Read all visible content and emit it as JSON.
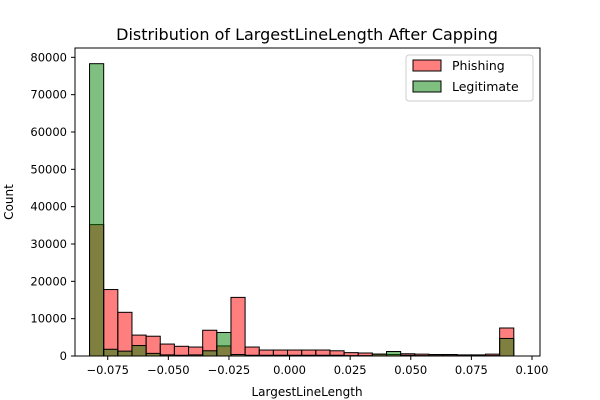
{
  "chart_data": {
    "type": "histogram",
    "title": "Distribution of LargestLineLength After Capping",
    "xlabel": "LargestLineLength",
    "ylabel": "Count",
    "xlim": [
      -0.0885,
      0.1033
    ],
    "ylim": [
      0,
      82500
    ],
    "x_ticks": [
      -0.075,
      -0.05,
      -0.025,
      0.0,
      0.025,
      0.05,
      0.075,
      0.1
    ],
    "x_tick_labels": [
      "−0.075",
      "−0.050",
      "−0.025",
      "0.000",
      "0.025",
      "0.050",
      "0.075",
      "0.100"
    ],
    "y_ticks": [
      0,
      10000,
      20000,
      30000,
      40000,
      50000,
      60000,
      70000,
      80000
    ],
    "y_tick_labels": [
      "0",
      "10000",
      "20000",
      "30000",
      "40000",
      "50000",
      "60000",
      "70000",
      "80000"
    ],
    "bin_start": -0.0825,
    "bin_width": 0.005833,
    "legend_position": "upper right",
    "series": [
      {
        "name": "Phishing",
        "color": "#ff0000",
        "alpha": 0.5,
        "values": [
          35200,
          17800,
          11700,
          5600,
          5300,
          3200,
          2600,
          2400,
          6900,
          2700,
          15700,
          2400,
          1600,
          1600,
          1600,
          1600,
          1600,
          1400,
          900,
          800,
          500,
          400,
          600,
          500,
          400,
          400,
          300,
          300,
          500,
          7500
        ]
      },
      {
        "name": "Legitimate",
        "color": "#008000",
        "alpha": 0.5,
        "values": [
          78300,
          1800,
          1300,
          2800,
          700,
          300,
          200,
          300,
          1400,
          6300,
          400,
          200,
          200,
          200,
          200,
          200,
          200,
          200,
          100,
          100,
          500,
          1200,
          200,
          100,
          100,
          100,
          100,
          100,
          100,
          4700
        ]
      }
    ]
  }
}
